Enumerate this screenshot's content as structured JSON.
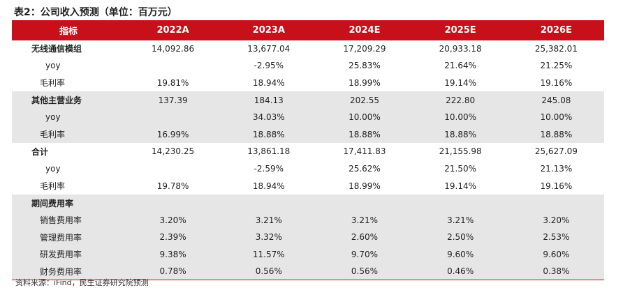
{
  "title": "表2：公司收入预测（单位：百万元）",
  "header": [
    "指标",
    "2022A",
    "2023A",
    "2024E",
    "2025E",
    "2026E"
  ],
  "rows": [
    {
      "label": "无线通信模组",
      "style": "bold",
      "gray": false,
      "values": [
        "14,092.86",
        "13,677.04",
        "17,209.29",
        "20,933.18",
        "25,382.01"
      ]
    },
    {
      "label": "yoy",
      "style": "sub",
      "gray": false,
      "values": [
        "",
        "-2.95%",
        "25.83%",
        "21.64%",
        "21.25%"
      ]
    },
    {
      "label": "毛利率",
      "style": "sub2",
      "gray": false,
      "values": [
        "19.81%",
        "18.94%",
        "18.99%",
        "19.14%",
        "19.16%"
      ]
    },
    {
      "label": "其他主营业务",
      "style": "bold",
      "gray": true,
      "values": [
        "137.39",
        "184.13",
        "202.55",
        "222.80",
        "245.08"
      ]
    },
    {
      "label": "yoy",
      "style": "sub",
      "gray": true,
      "values": [
        "",
        "34.03%",
        "10.00%",
        "10.00%",
        "10.00%"
      ]
    },
    {
      "label": "毛利率",
      "style": "sub2",
      "gray": true,
      "values": [
        "16.99%",
        "18.88%",
        "18.88%",
        "18.88%",
        "18.88%"
      ]
    },
    {
      "label": "合计",
      "style": "bold",
      "gray": false,
      "values": [
        "14,230.25",
        "13,861.18",
        "17,411.83",
        "21,155.98",
        "25,627.09"
      ]
    },
    {
      "label": "yoy",
      "style": "sub",
      "gray": false,
      "values": [
        "",
        "-2.59%",
        "25.62%",
        "21.50%",
        "21.13%"
      ]
    },
    {
      "label": "毛利率",
      "style": "sub2",
      "gray": false,
      "values": [
        "19.78%",
        "18.94%",
        "18.99%",
        "19.14%",
        "19.16%"
      ]
    },
    {
      "label": "期间费用率",
      "style": "bold",
      "gray": true,
      "values": [
        "",
        "",
        "",
        "",
        ""
      ]
    },
    {
      "label": "销售费用率",
      "style": "sub3",
      "gray": true,
      "values": [
        "3.20%",
        "3.21%",
        "3.21%",
        "3.21%",
        "3.20%"
      ]
    },
    {
      "label": "管理费用率",
      "style": "sub3",
      "gray": true,
      "values": [
        "2.39%",
        "3.32%",
        "2.60%",
        "2.50%",
        "2.53%"
      ]
    },
    {
      "label": "研发费用率",
      "style": "sub3",
      "gray": true,
      "values": [
        "9.38%",
        "11.57%",
        "9.70%",
        "9.60%",
        "9.60%"
      ]
    },
    {
      "label": "财务费用率",
      "style": "sub3",
      "gray": true,
      "values": [
        "0.78%",
        "0.56%",
        "0.56%",
        "0.46%",
        "0.38%"
      ]
    }
  ],
  "source": "资料来源：iFind，民生证券研究院预测"
}
